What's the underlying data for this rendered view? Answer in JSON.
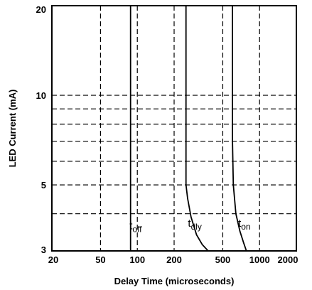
{
  "chart_data": {
    "type": "line",
    "title": "",
    "xlabel": "Delay Time (microseconds)",
    "ylabel": "LED Current (mA)",
    "x_scale": "log",
    "y_scale": "log",
    "xlim": [
      20,
      2000
    ],
    "ylim": [
      3,
      20
    ],
    "x_ticks": [
      20,
      50,
      100,
      200,
      500,
      1000,
      2000
    ],
    "x_tick_labels": [
      "20",
      "50",
      "100",
      "200",
      "500",
      "1000",
      "2000"
    ],
    "y_ticks": [
      3,
      5,
      10,
      20
    ],
    "y_tick_labels": [
      "3",
      "5",
      "10",
      "20"
    ],
    "x_gridlines": [
      50,
      100,
      200,
      500,
      1000
    ],
    "y_gridlines": [
      4,
      5,
      6,
      7,
      8,
      9,
      10
    ],
    "grid": true,
    "series": [
      {
        "name": "t_off",
        "label_main": "t",
        "label_sub": "off",
        "x": [
          88,
          88
        ],
        "y": [
          3,
          20
        ]
      },
      {
        "name": "t_dly",
        "label_main": "t",
        "label_sub": "dly",
        "x": [
          250,
          250,
          258,
          275,
          305,
          340,
          380
        ],
        "y": [
          20,
          5,
          4.5,
          3.9,
          3.4,
          3.15,
          3.0
        ]
      },
      {
        "name": "t_on",
        "label_main": "t",
        "label_sub": "on",
        "x": [
          600,
          600,
          610,
          640,
          690,
          740,
          780
        ],
        "y": [
          20,
          7,
          5.0,
          4.0,
          3.5,
          3.2,
          3.0
        ]
      }
    ]
  }
}
